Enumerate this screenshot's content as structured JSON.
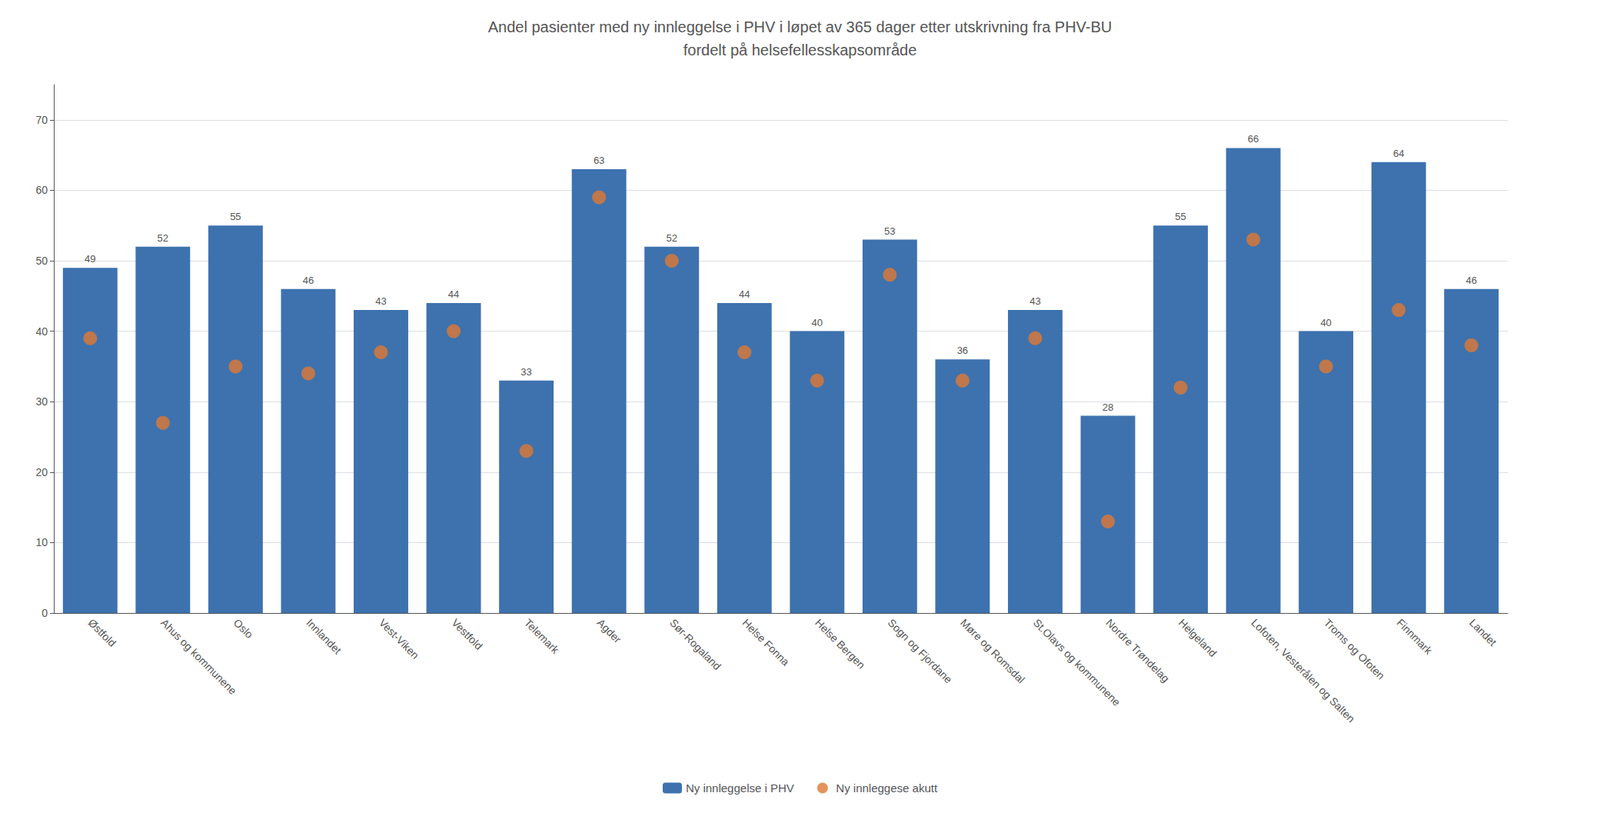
{
  "chart_data": {
    "type": "bar",
    "title": "Andel pasienter med ny innleggelse i PHV i løpet av 365 dager etter utskrivning fra PHV-BU\nfordelt på helsefellesskapsområde",
    "categories": [
      "Østfold",
      "Ahus og kommunene",
      "Oslo",
      "Innlandet",
      "Vest-Viken",
      "Vestfold",
      "Telemark",
      "Agder",
      "Sør-Rogaland",
      "Helse Fonna",
      "Helse Bergen",
      "Sogn og Fjordane",
      "Møre og Romsdal",
      "St.Olavs og kommunene",
      "Nordre Trøndelag",
      "Helgeland",
      "Lofoten, Vesterålen og Salten",
      "Troms og Ofoten",
      "Finnmark",
      "Landet"
    ],
    "series": [
      {
        "name": "Ny innleggelse i PHV",
        "type": "bar",
        "color": "#3D72AE",
        "data_labels": true,
        "values": [
          49,
          52,
          55,
          46,
          43,
          44,
          33,
          63,
          52,
          44,
          40,
          53,
          36,
          43,
          28,
          55,
          66,
          40,
          64,
          46
        ]
      },
      {
        "name": "Ny innleggese akutt",
        "type": "scatter",
        "color": "#E07832",
        "marker": "circle",
        "values": [
          39,
          27,
          35,
          34,
          37,
          40,
          23,
          59,
          50,
          37,
          33,
          48,
          33,
          39,
          13,
          32,
          53,
          35,
          43,
          38
        ]
      }
    ],
    "ylim": [
      0,
      75
    ],
    "yticks": [
      0,
      10,
      20,
      30,
      40,
      50,
      60,
      70
    ],
    "grid": true,
    "legend": "bottom"
  }
}
